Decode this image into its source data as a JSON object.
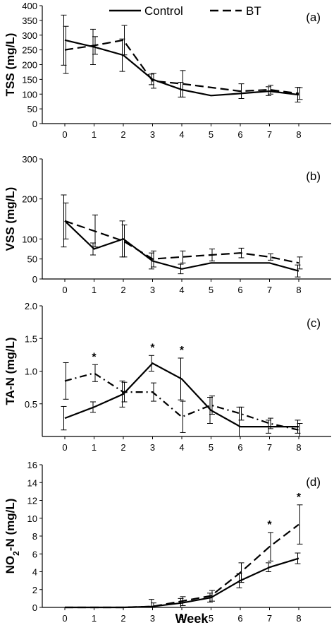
{
  "legend": {
    "control": "Control",
    "bt": "BT"
  },
  "xlabel": "Week",
  "chart_data": [
    {
      "type": "line",
      "tag": "(a)",
      "ylabel": "TSS (mg/L)",
      "yticks": [
        "0",
        "50",
        "100",
        "150",
        "200",
        "250",
        "300",
        "350",
        "400"
      ],
      "ylim": [
        0,
        400
      ],
      "yticks_values": [
        0,
        50,
        100,
        150,
        200,
        250,
        300,
        350,
        400
      ],
      "x": [
        0,
        1,
        2,
        3,
        4,
        5,
        6,
        7,
        8
      ],
      "series": [
        {
          "name": "Control",
          "values": [
            283,
            260,
            232,
            150,
            115,
            95,
            102,
            110,
            98
          ],
          "err": [
            85,
            60,
            55,
            18,
            25,
            null,
            null,
            15,
            25
          ]
        },
        {
          "name": "BT",
          "values": [
            250,
            265,
            283,
            145,
            135,
            null,
            110,
            115,
            102
          ],
          "err": [
            80,
            30,
            50,
            25,
            45,
            null,
            25,
            15,
            20
          ]
        }
      ],
      "stars": []
    },
    {
      "type": "line",
      "tag": "(b)",
      "ylabel": "VSS (mg/L)",
      "yticks": [
        "0",
        "50",
        "100",
        "200",
        "300"
      ],
      "ylim": [
        0,
        300
      ],
      "yticks_values": [
        0,
        50,
        100,
        200,
        300
      ],
      "x": [
        0,
        1,
        2,
        3,
        4,
        5,
        6,
        7,
        8
      ],
      "series": [
        {
          "name": "Control",
          "values": [
            145,
            75,
            100,
            45,
            25,
            40,
            40,
            40,
            20
          ],
          "err": [
            65,
            15,
            45,
            20,
            12,
            null,
            null,
            null,
            15
          ]
        },
        {
          "name": "BT",
          "values": [
            145,
            120,
            95,
            50,
            55,
            60,
            65,
            55,
            40
          ],
          "err": [
            45,
            40,
            40,
            20,
            15,
            15,
            12,
            8,
            15
          ]
        }
      ],
      "stars": []
    },
    {
      "type": "line",
      "tag": "(c)",
      "ylabel": "TA-N (mg/L)",
      "yticks": [
        "0.5",
        "1.0",
        "1.5",
        "2.0"
      ],
      "ylim": [
        0,
        2.0
      ],
      "yticks_values": [
        0.5,
        1.0,
        1.5,
        2.0
      ],
      "x": [
        0,
        1,
        2,
        3,
        4,
        5,
        6,
        7,
        8
      ],
      "series": [
        {
          "name": "Control",
          "values": [
            0.28,
            0.45,
            0.65,
            1.12,
            0.88,
            0.4,
            0.15,
            0.15,
            0.15
          ],
          "err": [
            0.18,
            0.08,
            0.2,
            0.12,
            0.32,
            0.2,
            0.3,
            0.1,
            0.1
          ]
        },
        {
          "name": "BT",
          "values": [
            0.85,
            0.97,
            0.68,
            0.68,
            0.3,
            0.48,
            0.35,
            0.2,
            0.1
          ],
          "err": [
            0.28,
            0.13,
            0.15,
            0.14,
            0.24,
            0.14,
            0.1,
            0.08,
            0.1
          ]
        }
      ],
      "stars": [
        1,
        3,
        4
      ]
    },
    {
      "type": "line",
      "tag": "(d)",
      "ylabel": "NO2-N (mg/L)",
      "yticks": [
        "0",
        "2",
        "4",
        "6",
        "8",
        "10",
        "12",
        "14",
        "16"
      ],
      "ylim": [
        0,
        16
      ],
      "yticks_values": [
        0,
        2,
        4,
        6,
        8,
        10,
        12,
        14,
        16
      ],
      "x": [
        0,
        1,
        2,
        3,
        4,
        5,
        6,
        7,
        8
      ],
      "series": [
        {
          "name": "Control",
          "values": [
            0,
            0,
            0,
            0.1,
            0.5,
            1.1,
            3.0,
            4.5,
            5.5
          ],
          "err": [
            null,
            null,
            null,
            0.8,
            0.5,
            0.5,
            0.8,
            0.5,
            0.6
          ]
        },
        {
          "name": "BT",
          "values": [
            0,
            0,
            0,
            0.1,
            0.7,
            1.3,
            3.9,
            6.8,
            9.3
          ],
          "err": [
            null,
            null,
            null,
            0.4,
            0.5,
            0.6,
            1.1,
            1.6,
            2.2
          ]
        }
      ],
      "stars": [
        7,
        8
      ]
    }
  ]
}
